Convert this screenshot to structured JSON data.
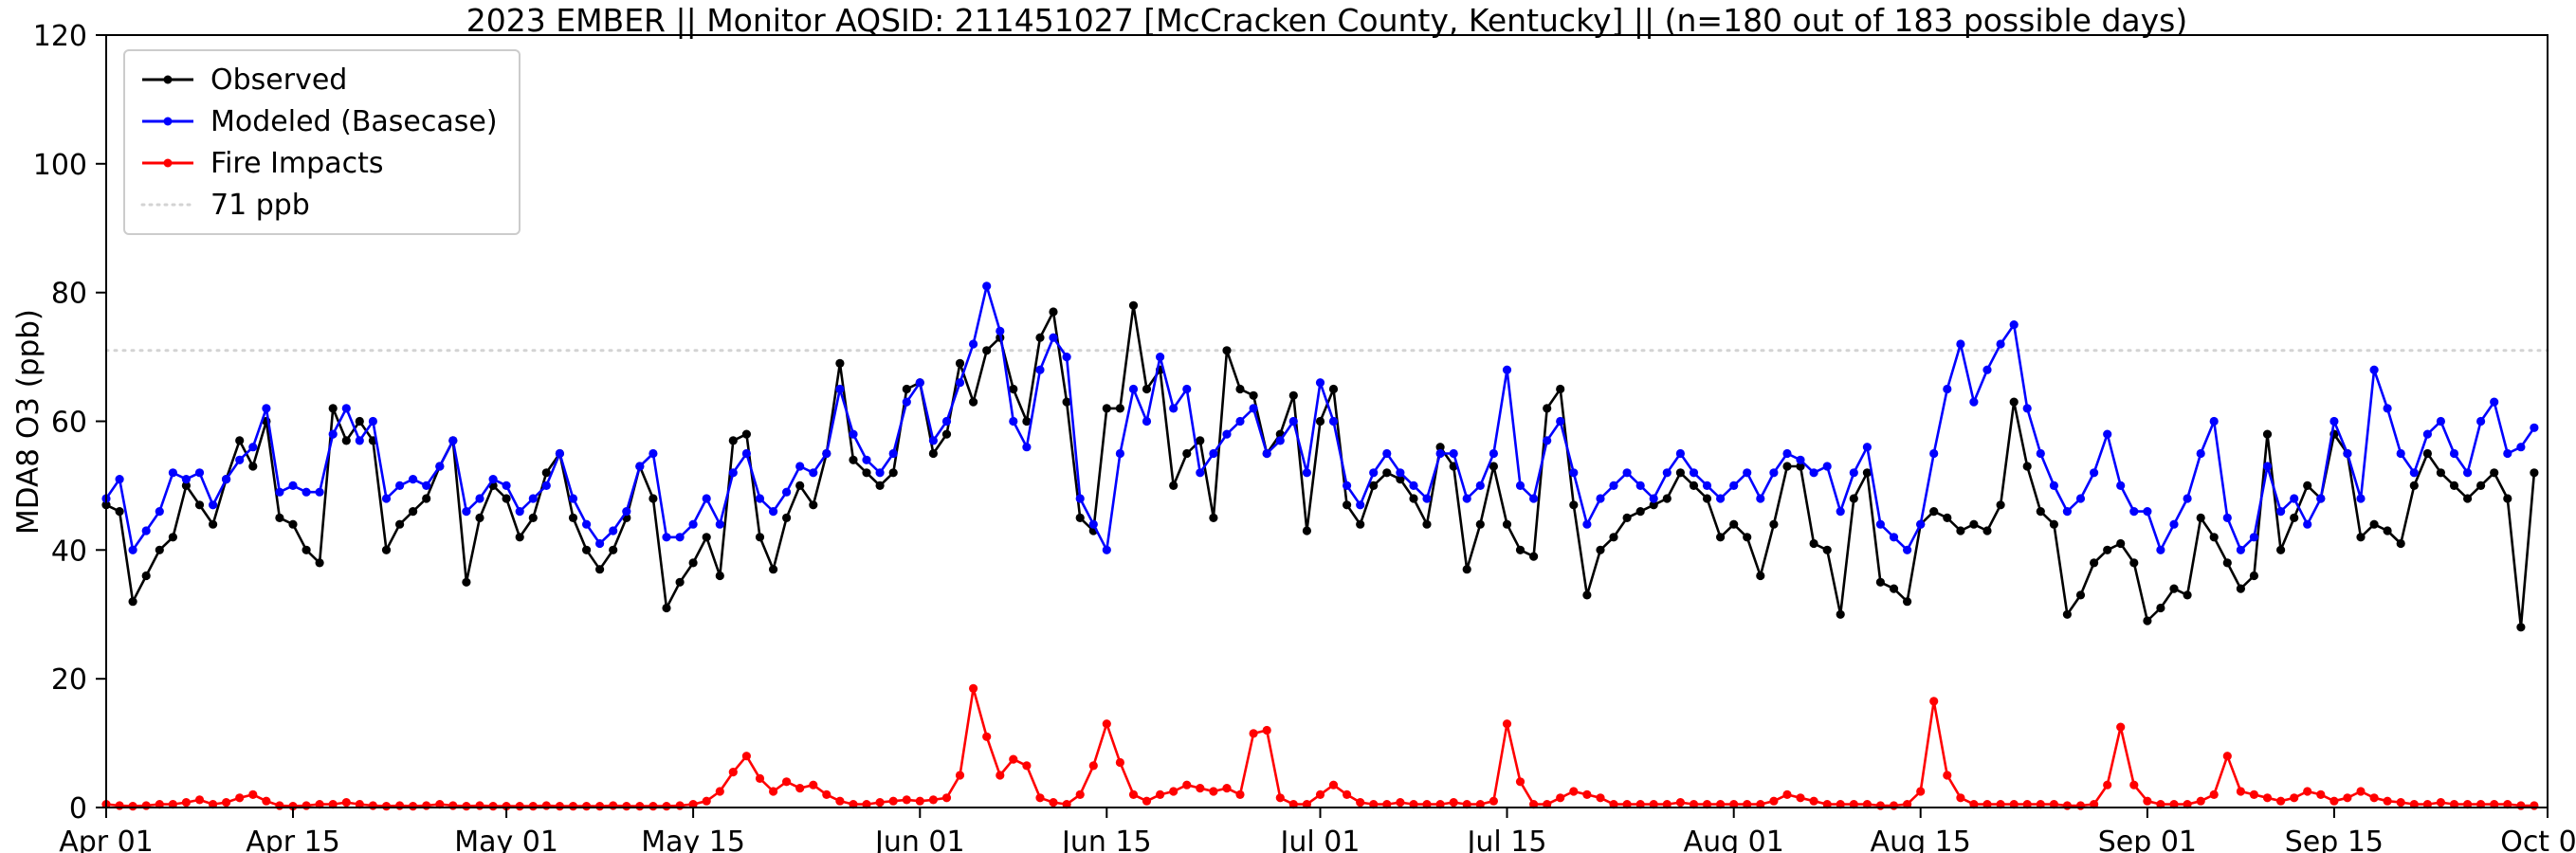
{
  "colors": {
    "observed": "#000000",
    "modeled": "#0000ff",
    "fire": "#ff0000",
    "reference": "#d3d3d3",
    "background": "#ffffff"
  },
  "chart_data": {
    "type": "line",
    "title": "2023 EMBER || Monitor AQSID: 211451027 [McCracken County, Kentucky] || (n=180 out of 183 possible days)",
    "xlabel": "",
    "ylabel": "MDA8 O3 (ppb)",
    "ylim": [
      0,
      120
    ],
    "yticks": [
      0,
      20,
      40,
      60,
      80,
      100,
      120
    ],
    "x_range_days": 183,
    "x_start": "Apr 01",
    "x_end": "Oct 01",
    "grid": false,
    "legend_position": "upper-left",
    "marker": "circle",
    "xticks": [
      {
        "day": 0,
        "label": "Apr 01"
      },
      {
        "day": 14,
        "label": "Apr 15"
      },
      {
        "day": 30,
        "label": "May 01"
      },
      {
        "day": 44,
        "label": "May 15"
      },
      {
        "day": 61,
        "label": "Jun 01"
      },
      {
        "day": 75,
        "label": "Jun 15"
      },
      {
        "day": 91,
        "label": "Jul 01"
      },
      {
        "day": 105,
        "label": "Jul 15"
      },
      {
        "day": 122,
        "label": "Aug 01"
      },
      {
        "day": 136,
        "label": "Aug 15"
      },
      {
        "day": 153,
        "label": "Sep 01"
      },
      {
        "day": 167,
        "label": "Sep 15"
      },
      {
        "day": 183,
        "label": "Oct 01"
      }
    ],
    "reference_line": {
      "value": 71,
      "label": "71 ppb",
      "style": "dotted",
      "color": "#d3d3d3"
    },
    "series": [
      {
        "name": "Observed",
        "color": "#000000",
        "values": [
          47,
          46,
          32,
          36,
          40,
          42,
          50,
          47,
          44,
          51,
          57,
          53,
          60,
          45,
          44,
          40,
          38,
          62,
          57,
          60,
          57,
          40,
          44,
          46,
          48,
          53,
          57,
          35,
          45,
          50,
          48,
          42,
          45,
          52,
          55,
          45,
          40,
          37,
          40,
          45,
          53,
          48,
          31,
          35,
          38,
          42,
          36,
          57,
          58,
          42,
          37,
          45,
          50,
          47,
          55,
          69,
          54,
          52,
          50,
          52,
          65,
          66,
          55,
          58,
          69,
          63,
          71,
          73,
          65,
          60,
          73,
          77,
          63,
          45,
          43,
          62,
          62,
          78,
          65,
          68,
          50,
          55,
          57,
          45,
          71,
          65,
          64,
          55,
          58,
          64,
          43,
          60,
          65,
          47,
          44,
          50,
          52,
          51,
          48,
          44,
          56,
          53,
          37,
          44,
          53,
          44,
          40,
          39,
          62,
          65,
          47,
          33,
          40,
          42,
          45,
          46,
          47,
          48,
          52,
          50,
          48,
          42,
          44,
          42,
          36,
          44,
          53,
          53,
          41,
          40,
          30,
          48,
          52,
          35,
          34,
          32,
          44,
          46,
          45,
          43,
          44,
          43,
          47,
          63,
          53,
          46,
          44,
          30,
          33,
          38,
          40,
          41,
          38,
          29,
          31,
          34,
          33,
          45,
          42,
          38,
          34,
          36,
          58,
          40,
          45,
          50,
          48,
          58,
          55,
          42,
          44,
          43,
          41,
          50,
          55,
          52,
          50,
          48,
          50,
          52,
          48,
          28,
          52
        ]
      },
      {
        "name": "Modeled (Basecase)",
        "color": "#0000ff",
        "values": [
          48,
          51,
          40,
          43,
          46,
          52,
          51,
          52,
          47,
          51,
          54,
          56,
          62,
          49,
          50,
          49,
          49,
          58,
          62,
          57,
          60,
          48,
          50,
          51,
          50,
          53,
          57,
          46,
          48,
          51,
          50,
          46,
          48,
          50,
          55,
          48,
          44,
          41,
          43,
          46,
          53,
          55,
          42,
          42,
          44,
          48,
          44,
          52,
          55,
          48,
          46,
          49,
          53,
          52,
          55,
          65,
          58,
          54,
          52,
          55,
          63,
          66,
          57,
          60,
          66,
          72,
          81,
          74,
          60,
          56,
          68,
          73,
          70,
          48,
          44,
          40,
          55,
          65,
          60,
          70,
          62,
          65,
          52,
          55,
          58,
          60,
          62,
          55,
          57,
          60,
          52,
          66,
          60,
          50,
          47,
          52,
          55,
          52,
          50,
          48,
          55,
          55,
          48,
          50,
          55,
          68,
          50,
          48,
          57,
          60,
          52,
          44,
          48,
          50,
          52,
          50,
          48,
          52,
          55,
          52,
          50,
          48,
          50,
          52,
          48,
          52,
          55,
          54,
          52,
          53,
          46,
          52,
          56,
          44,
          42,
          40,
          44,
          55,
          65,
          72,
          63,
          68,
          72,
          75,
          62,
          55,
          50,
          46,
          48,
          52,
          58,
          50,
          46,
          46,
          40,
          44,
          48,
          55,
          60,
          45,
          40,
          42,
          53,
          46,
          48,
          44,
          48,
          60,
          55,
          48,
          68,
          62,
          55,
          52,
          58,
          60,
          55,
          52,
          60,
          63,
          55,
          56,
          59
        ]
      },
      {
        "name": "Fire Impacts",
        "color": "#ff0000",
        "values": [
          0.5,
          0.3,
          0.2,
          0.3,
          0.5,
          0.5,
          0.8,
          1.2,
          0.5,
          0.8,
          1.5,
          2,
          1,
          0.3,
          0.2,
          0.3,
          0.5,
          0.5,
          0.8,
          0.5,
          0.3,
          0.2,
          0.3,
          0.2,
          0.3,
          0.5,
          0.3,
          0.2,
          0.3,
          0.2,
          0.2,
          0.2,
          0.2,
          0.3,
          0.2,
          0.2,
          0.2,
          0.2,
          0.3,
          0.2,
          0.2,
          0.2,
          0.2,
          0.3,
          0.5,
          1,
          2.5,
          5.5,
          8,
          4.5,
          2.5,
          4,
          3,
          3.5,
          2,
          1,
          0.5,
          0.5,
          0.8,
          1,
          1.2,
          1,
          1.2,
          1.5,
          5,
          18.5,
          11,
          5,
          7.5,
          6.5,
          1.5,
          0.8,
          0.5,
          2,
          6.5,
          13,
          7,
          2,
          1,
          2,
          2.5,
          3.5,
          3,
          2.5,
          3,
          2,
          11.5,
          12,
          1.5,
          0.5,
          0.5,
          2,
          3.5,
          2,
          0.8,
          0.5,
          0.5,
          0.8,
          0.5,
          0.5,
          0.5,
          0.8,
          0.5,
          0.5,
          1,
          13,
          4,
          0.5,
          0.5,
          1.5,
          2.5,
          2,
          1.5,
          0.5,
          0.5,
          0.5,
          0.5,
          0.5,
          0.8,
          0.5,
          0.5,
          0.5,
          0.5,
          0.5,
          0.5,
          1,
          2,
          1.5,
          1,
          0.5,
          0.5,
          0.5,
          0.5,
          0.3,
          0.3,
          0.5,
          2.5,
          16.5,
          5,
          1.5,
          0.5,
          0.5,
          0.5,
          0.5,
          0.5,
          0.5,
          0.5,
          0.3,
          0.3,
          0.5,
          3.5,
          12.5,
          3.5,
          1,
          0.5,
          0.5,
          0.5,
          1,
          2,
          8,
          2.5,
          2,
          1.5,
          1,
          1.5,
          2.5,
          2,
          1,
          1.5,
          2.5,
          1.5,
          1,
          0.8,
          0.5,
          0.5,
          0.8,
          0.5,
          0.5,
          0.5,
          0.5,
          0.5,
          0.3,
          0.3
        ]
      }
    ]
  }
}
